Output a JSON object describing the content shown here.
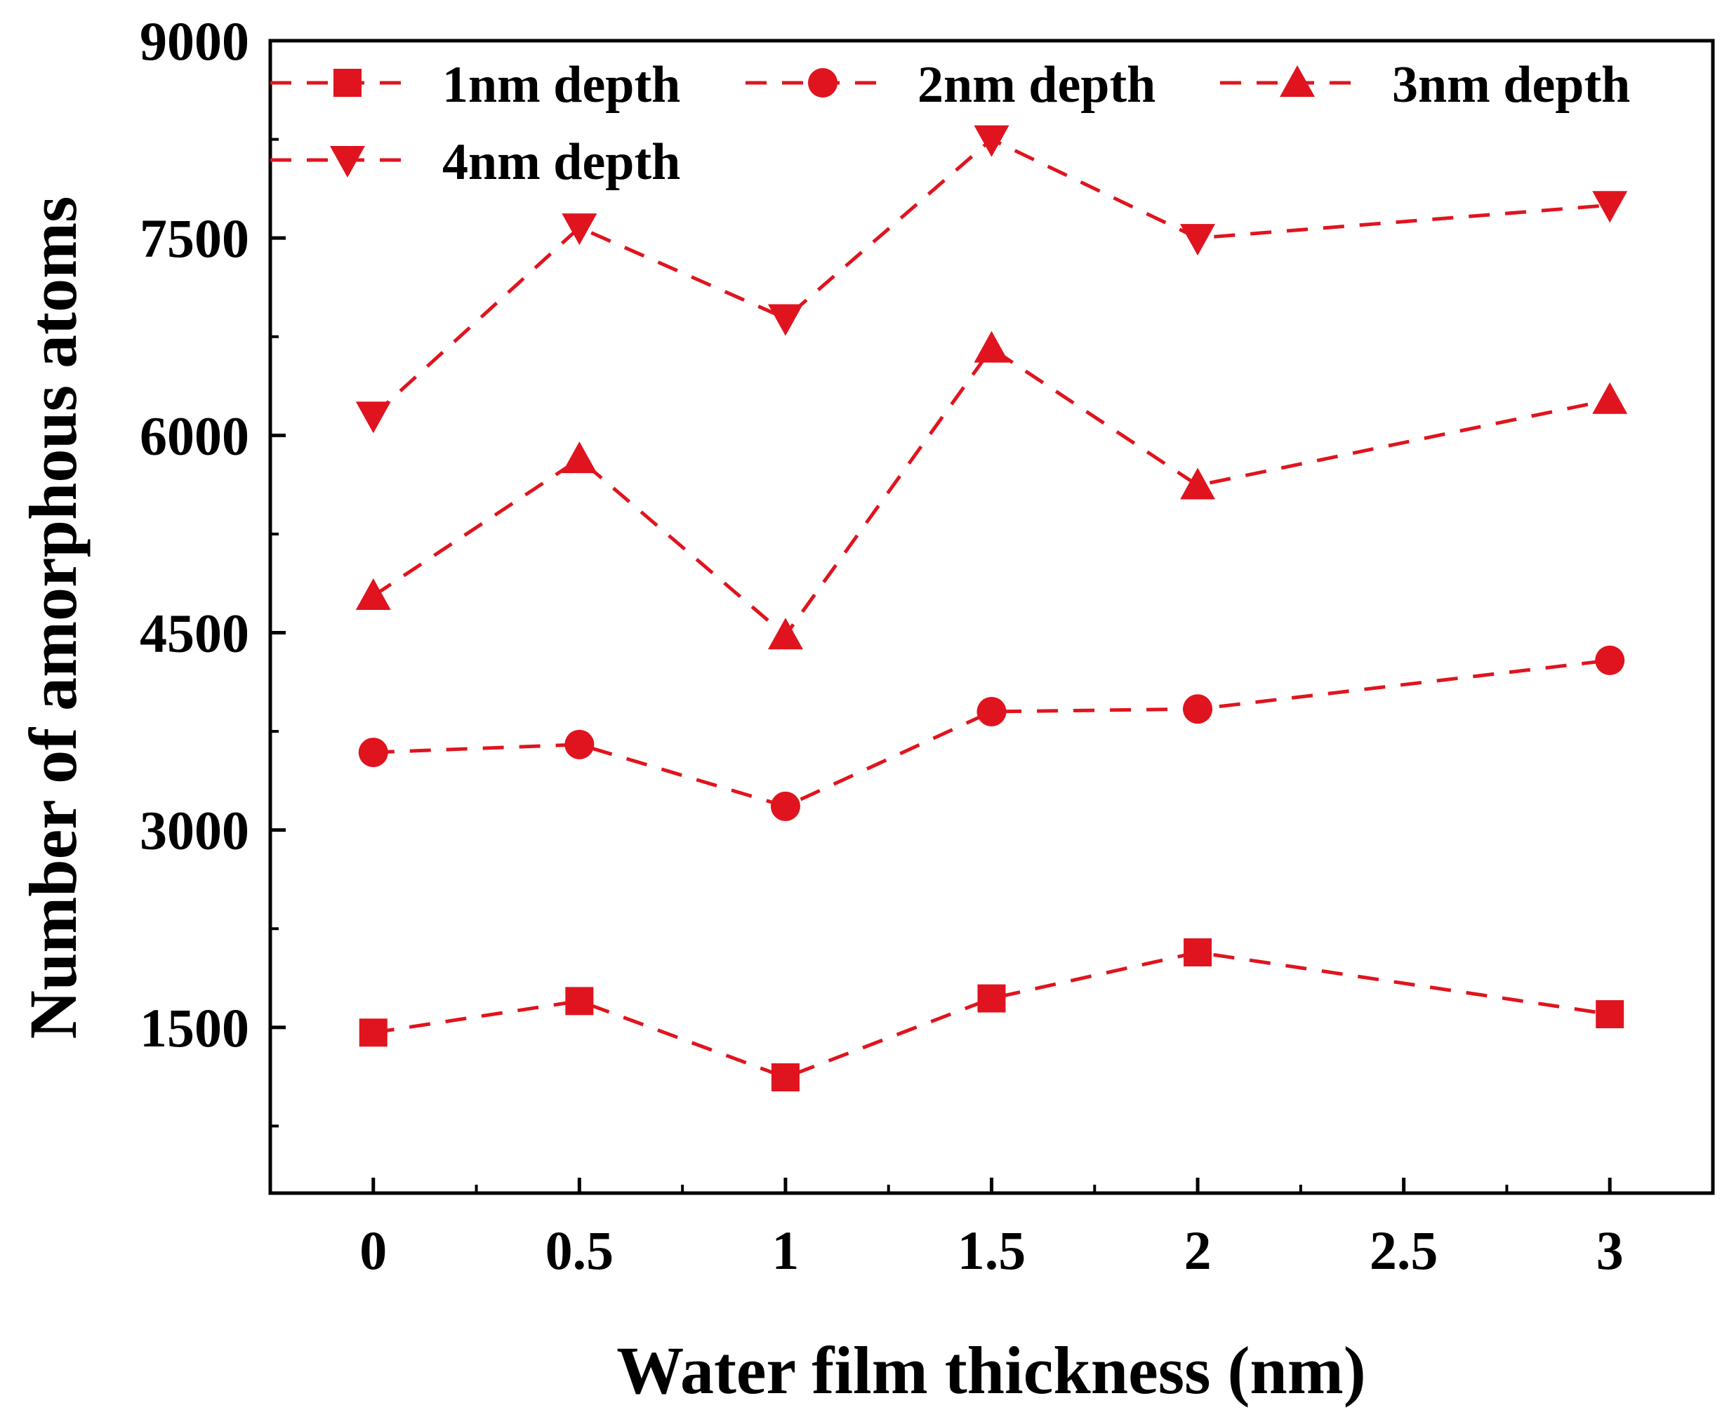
{
  "chart_data": {
    "type": "line",
    "title": "",
    "xlabel": "Water film thickness (nm)",
    "ylabel": "Number of amorphous atoms",
    "xlim": [
      -0.25,
      3.25
    ],
    "ylim": [
      240,
      9000
    ],
    "x_ticks": [
      0,
      0.5,
      1,
      1.5,
      2,
      2.5,
      3
    ],
    "x_tick_labels": [
      "0",
      "0.5",
      "1",
      "1.5",
      "2",
      "2.5",
      "3"
    ],
    "y_ticks": [
      1500,
      3000,
      4500,
      6000,
      7500,
      9000
    ],
    "y_tick_labels": [
      "1500",
      "3000",
      "4500",
      "6000",
      "7500",
      "9000"
    ],
    "x": [
      0,
      0.5,
      1,
      1.5,
      2,
      3
    ],
    "series": [
      {
        "name": "1nm depth",
        "marker": "square",
        "values": [
          1460,
          1700,
          1120,
          1720,
          2070,
          1600
        ]
      },
      {
        "name": "2nm depth",
        "marker": "circle",
        "values": [
          3590,
          3650,
          3180,
          3900,
          3920,
          4290
        ]
      },
      {
        "name": "3nm depth",
        "marker": "triangle-up",
        "values": [
          4780,
          5820,
          4480,
          6660,
          5620,
          6270
        ]
      },
      {
        "name": "4nm depth",
        "marker": "triangle-down",
        "values": [
          6150,
          7580,
          6890,
          8250,
          7500,
          7750
        ]
      }
    ],
    "line_style": "dashed",
    "grid": false,
    "legend_position": "top-left",
    "color": "#e0141e"
  }
}
